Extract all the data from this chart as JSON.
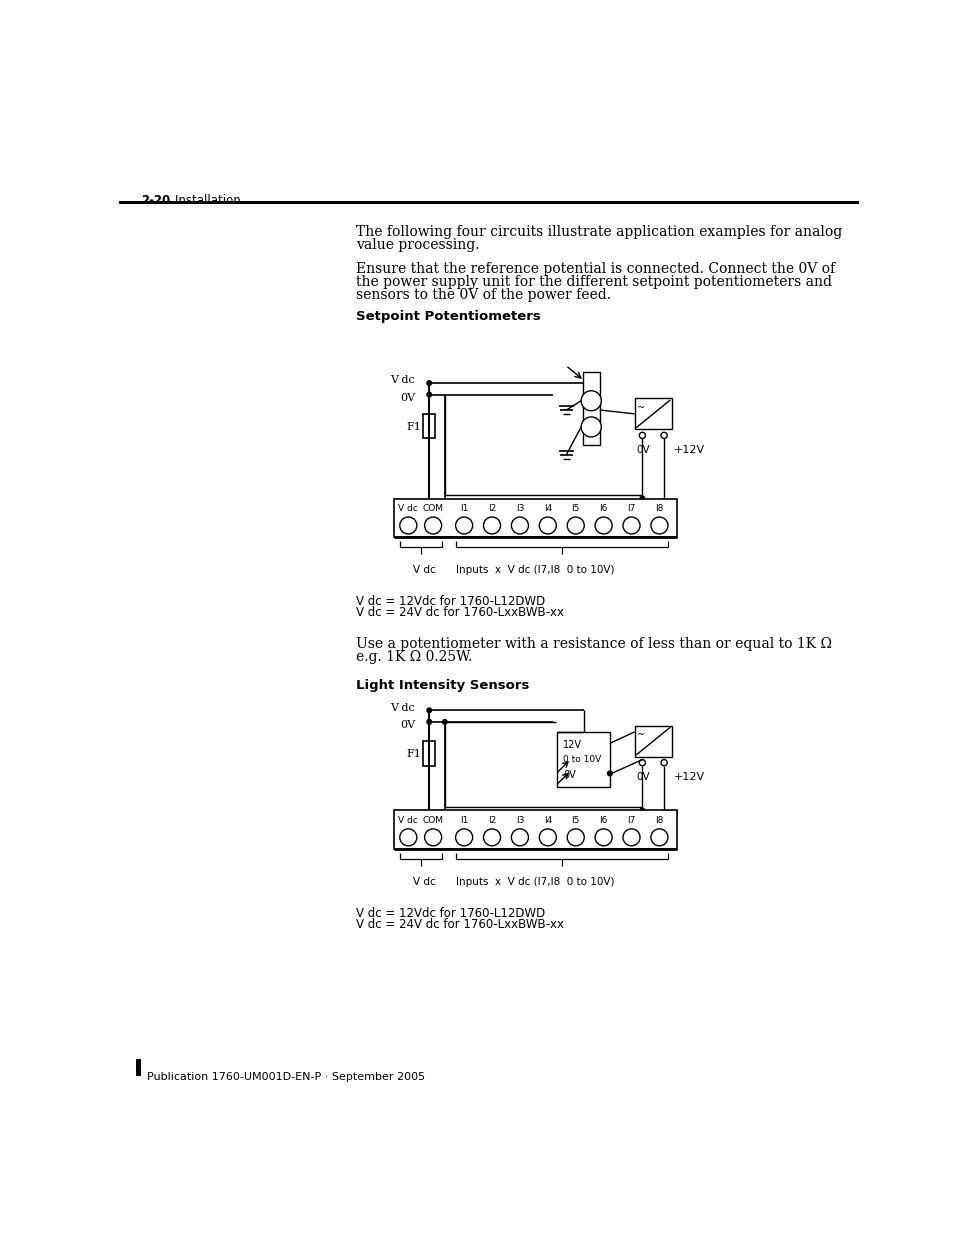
{
  "bg_color": "#ffffff",
  "text_color": "#000000",
  "header_bold": "2-20",
  "header_normal": "    Installation",
  "footer_text": "Publication 1760-UM001D-EN-P · September 2005",
  "para1_line1": "The following four circuits illustrate application examples for analog",
  "para1_line2": "value processing.",
  "para2_line1": "Ensure that the reference potential is connected. Connect the 0V of",
  "para2_line2": "the power supply unit for the different setpoint potentiometers and",
  "para2_line3": "sensors to the 0V of the power feed.",
  "heading1": "Setpoint Potentiometers",
  "heading2": "Light Intensity Sensors",
  "caption1a": "V dc = 12Vdc for 1760-L12DWD",
  "caption1b": "V dc = 24V dc for 1760-LxxBWB-xx",
  "caption2a": "V dc = 12Vdc for 1760-L12DWD",
  "caption2b": "V dc = 24V dc for 1760-LxxBWB-xx",
  "mid_line1": "Use a potentiometer with a resistance of less than or equal to 1K Ω",
  "mid_line2": "e.g. 1K Ω 0.25W.",
  "terminal_labels": [
    "V dc",
    "COM",
    "I1",
    "I2",
    "I3",
    "I4",
    "I5",
    "I6",
    "I7",
    "I8"
  ],
  "brace_label1": "V dc",
  "brace_label2": "Inputs  x  V dc (I7,I8  0 to 10V)"
}
